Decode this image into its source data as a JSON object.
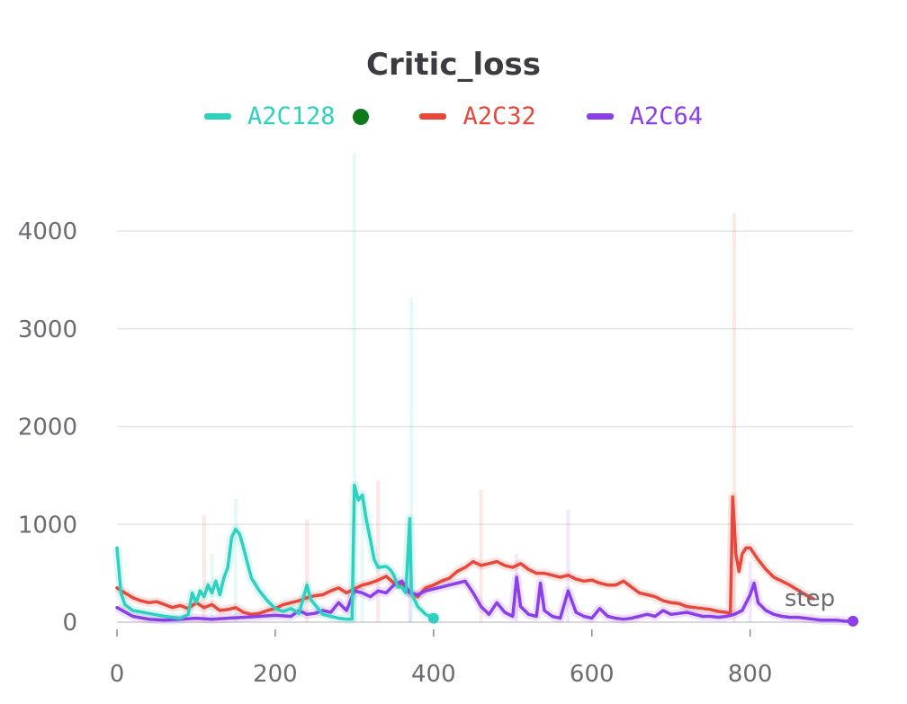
{
  "chart_data": {
    "type": "line",
    "title": "Critic_loss",
    "xlabel": "step",
    "ylabel": "",
    "xlim": [
      0,
      930
    ],
    "ylim": [
      0,
      4800
    ],
    "x_ticks": [
      0,
      200,
      400,
      600,
      800
    ],
    "y_ticks": [
      0,
      1000,
      2000,
      3000,
      4000
    ],
    "grid": "horizontal",
    "legend_position": "top-center",
    "series": [
      {
        "name": "A2C128",
        "color": "#2ed1bf",
        "smoothed": [
          [
            0,
            760
          ],
          [
            5,
            300
          ],
          [
            10,
            180
          ],
          [
            20,
            120
          ],
          [
            40,
            90
          ],
          [
            60,
            60
          ],
          [
            80,
            40
          ],
          [
            90,
            80
          ],
          [
            95,
            300
          ],
          [
            100,
            200
          ],
          [
            105,
            320
          ],
          [
            110,
            260
          ],
          [
            115,
            380
          ],
          [
            120,
            300
          ],
          [
            125,
            420
          ],
          [
            130,
            280
          ],
          [
            135,
            450
          ],
          [
            140,
            560
          ],
          [
            145,
            870
          ],
          [
            150,
            950
          ],
          [
            155,
            900
          ],
          [
            160,
            760
          ],
          [
            165,
            600
          ],
          [
            170,
            450
          ],
          [
            180,
            320
          ],
          [
            190,
            220
          ],
          [
            200,
            140
          ],
          [
            210,
            110
          ],
          [
            220,
            140
          ],
          [
            230,
            90
          ],
          [
            240,
            380
          ],
          [
            245,
            230
          ],
          [
            250,
            180
          ],
          [
            260,
            80
          ],
          [
            270,
            60
          ],
          [
            280,
            40
          ],
          [
            290,
            30
          ],
          [
            297,
            30
          ],
          [
            300,
            1400
          ],
          [
            305,
            1250
          ],
          [
            310,
            1300
          ],
          [
            315,
            1050
          ],
          [
            320,
            850
          ],
          [
            325,
            640
          ],
          [
            330,
            560
          ],
          [
            340,
            570
          ],
          [
            345,
            540
          ],
          [
            350,
            480
          ],
          [
            355,
            360
          ],
          [
            360,
            360
          ],
          [
            365,
            300
          ],
          [
            370,
            1060
          ],
          [
            372,
            300
          ],
          [
            380,
            160
          ],
          [
            390,
            80
          ],
          [
            400,
            40
          ]
        ],
        "raw_peaks": [
          [
            300,
            4800
          ],
          [
            372,
            3320
          ],
          [
            150,
            1260
          ],
          [
            120,
            700
          ],
          [
            310,
            1300
          ]
        ]
      },
      {
        "name": "A2C32",
        "color": "#e8483b",
        "smoothed": [
          [
            0,
            350
          ],
          [
            10,
            300
          ],
          [
            20,
            250
          ],
          [
            30,
            220
          ],
          [
            40,
            200
          ],
          [
            50,
            210
          ],
          [
            60,
            180
          ],
          [
            70,
            150
          ],
          [
            80,
            170
          ],
          [
            90,
            140
          ],
          [
            100,
            200
          ],
          [
            110,
            150
          ],
          [
            120,
            180
          ],
          [
            130,
            120
          ],
          [
            140,
            130
          ],
          [
            150,
            150
          ],
          [
            160,
            100
          ],
          [
            170,
            80
          ],
          [
            180,
            90
          ],
          [
            190,
            120
          ],
          [
            200,
            140
          ],
          [
            210,
            180
          ],
          [
            220,
            200
          ],
          [
            230,
            220
          ],
          [
            240,
            250
          ],
          [
            250,
            270
          ],
          [
            260,
            280
          ],
          [
            270,
            320
          ],
          [
            280,
            350
          ],
          [
            290,
            300
          ],
          [
            300,
            340
          ],
          [
            310,
            380
          ],
          [
            320,
            400
          ],
          [
            330,
            430
          ],
          [
            340,
            470
          ],
          [
            350,
            400
          ],
          [
            360,
            380
          ],
          [
            370,
            300
          ],
          [
            380,
            260
          ],
          [
            390,
            350
          ],
          [
            400,
            380
          ],
          [
            410,
            420
          ],
          [
            420,
            450
          ],
          [
            430,
            520
          ],
          [
            440,
            560
          ],
          [
            450,
            620
          ],
          [
            460,
            580
          ],
          [
            470,
            600
          ],
          [
            480,
            620
          ],
          [
            490,
            580
          ],
          [
            500,
            560
          ],
          [
            510,
            600
          ],
          [
            520,
            540
          ],
          [
            530,
            500
          ],
          [
            540,
            500
          ],
          [
            550,
            480
          ],
          [
            560,
            460
          ],
          [
            570,
            480
          ],
          [
            580,
            440
          ],
          [
            590,
            420
          ],
          [
            600,
            430
          ],
          [
            610,
            400
          ],
          [
            620,
            380
          ],
          [
            630,
            380
          ],
          [
            640,
            420
          ],
          [
            650,
            360
          ],
          [
            660,
            300
          ],
          [
            670,
            280
          ],
          [
            680,
            260
          ],
          [
            690,
            220
          ],
          [
            700,
            200
          ],
          [
            710,
            190
          ],
          [
            720,
            160
          ],
          [
            730,
            150
          ],
          [
            740,
            140
          ],
          [
            750,
            130
          ],
          [
            760,
            110
          ],
          [
            770,
            100
          ],
          [
            775,
            90
          ],
          [
            778,
            1280
          ],
          [
            782,
            700
          ],
          [
            786,
            520
          ],
          [
            790,
            700
          ],
          [
            795,
            760
          ],
          [
            800,
            760
          ],
          [
            810,
            640
          ],
          [
            820,
            540
          ],
          [
            830,
            460
          ],
          [
            840,
            420
          ],
          [
            850,
            380
          ],
          [
            860,
            330
          ],
          [
            870,
            280
          ],
          [
            880,
            240
          ]
        ],
        "raw_peaks": [
          [
            780,
            4180
          ],
          [
            330,
            1450
          ],
          [
            460,
            1350
          ],
          [
            240,
            1050
          ],
          [
            110,
            1100
          ]
        ]
      },
      {
        "name": "A2C64",
        "color": "#8a3fe8",
        "smoothed": [
          [
            0,
            150
          ],
          [
            20,
            60
          ],
          [
            40,
            30
          ],
          [
            60,
            20
          ],
          [
            80,
            30
          ],
          [
            100,
            40
          ],
          [
            120,
            30
          ],
          [
            140,
            40
          ],
          [
            160,
            50
          ],
          [
            180,
            60
          ],
          [
            200,
            70
          ],
          [
            220,
            60
          ],
          [
            230,
            120
          ],
          [
            240,
            80
          ],
          [
            250,
            90
          ],
          [
            260,
            120
          ],
          [
            270,
            100
          ],
          [
            280,
            200
          ],
          [
            290,
            120
          ],
          [
            300,
            320
          ],
          [
            310,
            300
          ],
          [
            320,
            260
          ],
          [
            330,
            320
          ],
          [
            340,
            300
          ],
          [
            350,
            380
          ],
          [
            360,
            420
          ],
          [
            370,
            300
          ],
          [
            380,
            280
          ],
          [
            390,
            320
          ],
          [
            400,
            340
          ],
          [
            410,
            360
          ],
          [
            420,
            380
          ],
          [
            430,
            400
          ],
          [
            440,
            420
          ],
          [
            450,
            300
          ],
          [
            460,
            160
          ],
          [
            470,
            80
          ],
          [
            480,
            200
          ],
          [
            490,
            100
          ],
          [
            500,
            60
          ],
          [
            505,
            460
          ],
          [
            510,
            160
          ],
          [
            520,
            80
          ],
          [
            530,
            60
          ],
          [
            535,
            400
          ],
          [
            540,
            120
          ],
          [
            550,
            60
          ],
          [
            560,
            40
          ],
          [
            570,
            320
          ],
          [
            580,
            100
          ],
          [
            590,
            60
          ],
          [
            600,
            40
          ],
          [
            610,
            140
          ],
          [
            620,
            60
          ],
          [
            630,
            40
          ],
          [
            640,
            30
          ],
          [
            650,
            40
          ],
          [
            660,
            60
          ],
          [
            670,
            80
          ],
          [
            680,
            60
          ],
          [
            690,
            120
          ],
          [
            700,
            80
          ],
          [
            710,
            90
          ],
          [
            720,
            100
          ],
          [
            730,
            80
          ],
          [
            740,
            60
          ],
          [
            750,
            60
          ],
          [
            760,
            50
          ],
          [
            770,
            60
          ],
          [
            780,
            80
          ],
          [
            790,
            120
          ],
          [
            800,
            280
          ],
          [
            805,
            400
          ],
          [
            810,
            200
          ],
          [
            820,
            120
          ],
          [
            830,
            80
          ],
          [
            840,
            60
          ],
          [
            850,
            50
          ],
          [
            860,
            50
          ],
          [
            870,
            40
          ],
          [
            880,
            30
          ],
          [
            890,
            20
          ],
          [
            900,
            20
          ],
          [
            910,
            20
          ],
          [
            920,
            10
          ],
          [
            930,
            10
          ]
        ],
        "raw_peaks": [
          [
            570,
            1150
          ],
          [
            370,
            900
          ],
          [
            505,
            700
          ],
          [
            800,
            620
          ]
        ]
      }
    ]
  }
}
